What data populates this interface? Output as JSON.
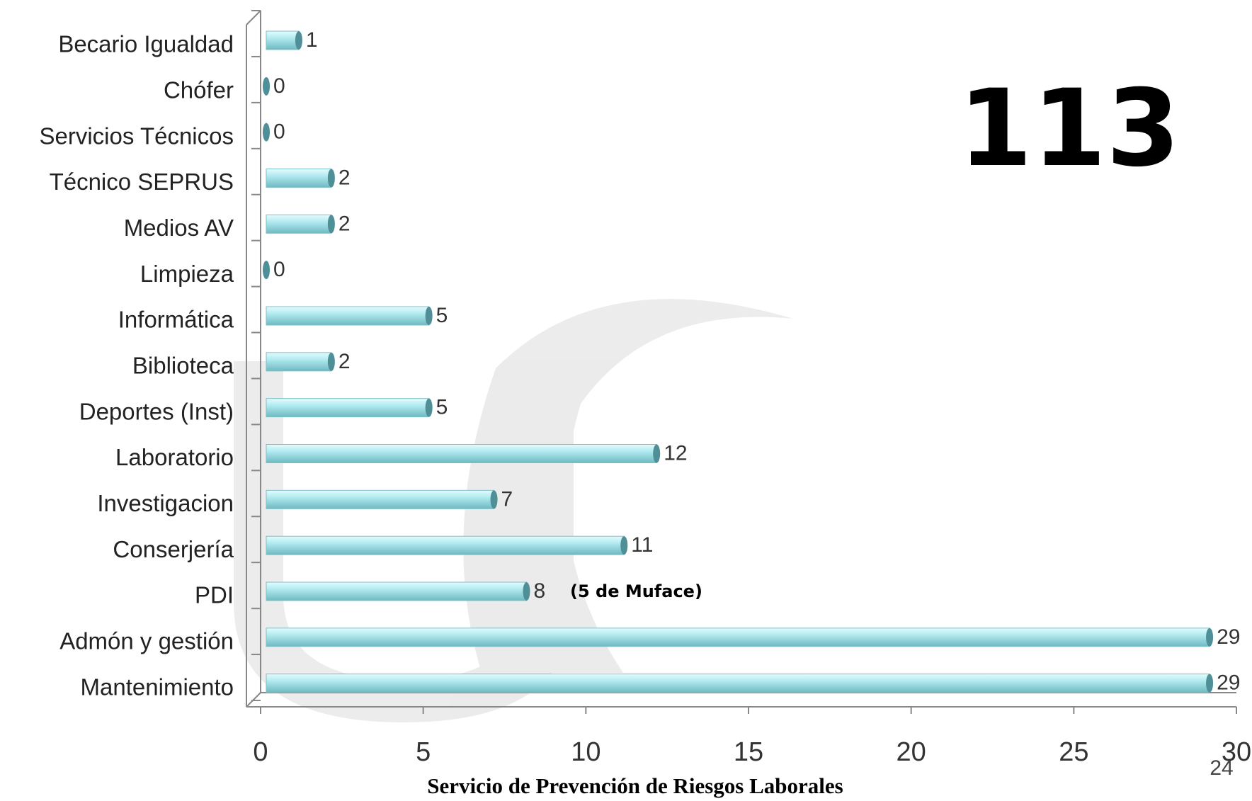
{
  "chart_data": {
    "type": "bar",
    "orientation": "horizontal",
    "categories": [
      "Becario Igualdad",
      "Chófer",
      "Servicios Técnicos",
      "Técnico SEPRUS",
      "Medios AV",
      "Limpieza",
      "Informática",
      "Biblioteca",
      "Deportes (Inst)",
      "Laboratorio",
      "Investigacion",
      "Conserjería",
      "PDI",
      "Admón y gestión",
      "Mantenimiento"
    ],
    "values": [
      1,
      0,
      0,
      2,
      2,
      0,
      5,
      2,
      5,
      12,
      7,
      11,
      8,
      29,
      29
    ],
    "color": "#a8e6ec",
    "xlim": [
      0,
      30
    ],
    "xticks": [
      0,
      5,
      10,
      15,
      20,
      25,
      30
    ],
    "annotations": [
      "113",
      "(5 de Muface)"
    ]
  },
  "footer": "Servicio de Prevención de Riesgos Laborales",
  "page_number": "24"
}
